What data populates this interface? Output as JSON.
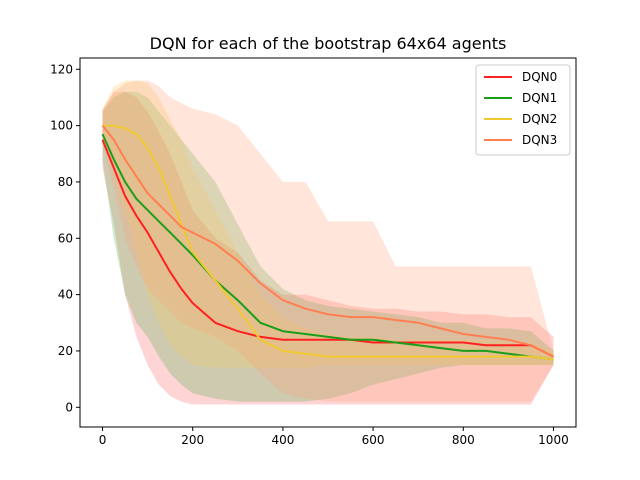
{
  "chart_data": {
    "type": "line",
    "title": "DQN for each of the bootstrap 64x64 agents",
    "xlabel": "",
    "ylabel": "",
    "xlim": [
      -50,
      1050
    ],
    "ylim": [
      -7,
      124
    ],
    "xticks": [
      0,
      200,
      400,
      600,
      800,
      1000
    ],
    "yticks": [
      0,
      20,
      40,
      60,
      80,
      100,
      120
    ],
    "grid": false,
    "legend_position": "top-right",
    "series": [
      {
        "name": "DQN0",
        "color": "#ff2020",
        "band_color": "#ff6666",
        "x": [
          0,
          25,
          50,
          75,
          100,
          125,
          150,
          175,
          200,
          250,
          300,
          350,
          400,
          450,
          500,
          550,
          600,
          650,
          700,
          750,
          800,
          850,
          900,
          950,
          1000
        ],
        "y": [
          95,
          85,
          75,
          68,
          62,
          55,
          48,
          42,
          37,
          30,
          27,
          25,
          24,
          24,
          24,
          24,
          23,
          23,
          23,
          23,
          23,
          22,
          22,
          22,
          18
        ],
        "band_upper": [
          105,
          112,
          112,
          110,
          105,
          98,
          90,
          80,
          70,
          60,
          55,
          45,
          40,
          40,
          38,
          36,
          35,
          35,
          34,
          34,
          33,
          33,
          32,
          32,
          25
        ],
        "band_lower": [
          85,
          65,
          40,
          25,
          15,
          8,
          4,
          2,
          1,
          1,
          1,
          1,
          1,
          1,
          1,
          1,
          1,
          1,
          1,
          1,
          1,
          1,
          1,
          1,
          15
        ]
      },
      {
        "name": "DQN1",
        "color": "#1a9e1a",
        "band_color": "#4caf50",
        "x": [
          0,
          25,
          50,
          75,
          100,
          125,
          150,
          175,
          200,
          250,
          300,
          350,
          400,
          450,
          500,
          550,
          600,
          650,
          700,
          750,
          800,
          850,
          900,
          950,
          1000
        ],
        "y": [
          97,
          88,
          80,
          74,
          70,
          66,
          62,
          58,
          54,
          45,
          38,
          30,
          27,
          26,
          25,
          24,
          24,
          23,
          22,
          21,
          20,
          20,
          19,
          18,
          17
        ],
        "band_upper": [
          105,
          110,
          112,
          112,
          110,
          105,
          100,
          95,
          90,
          80,
          65,
          50,
          42,
          38,
          36,
          35,
          34,
          33,
          32,
          30,
          30,
          28,
          28,
          27,
          20
        ],
        "band_lower": [
          88,
          60,
          40,
          30,
          25,
          18,
          12,
          8,
          5,
          3,
          2,
          2,
          2,
          2,
          3,
          5,
          8,
          10,
          12,
          14,
          15,
          15,
          15,
          15,
          15
        ]
      },
      {
        "name": "DQN2",
        "color": "#f0c830",
        "band_color": "#f5d060",
        "x": [
          0,
          25,
          50,
          75,
          100,
          125,
          150,
          175,
          200,
          250,
          300,
          350,
          400,
          450,
          500,
          550,
          600,
          650,
          700,
          750,
          800,
          850,
          900,
          950,
          1000
        ],
        "y": [
          100,
          100,
          99,
          97,
          92,
          85,
          75,
          65,
          55,
          45,
          35,
          24,
          20,
          19,
          18,
          18,
          18,
          18,
          18,
          18,
          18,
          18,
          18,
          18,
          17
        ],
        "band_upper": [
          106,
          114,
          116,
          116,
          115,
          110,
          102,
          95,
          85,
          70,
          55,
          40,
          32,
          28,
          26,
          25,
          25,
          24,
          24,
          24,
          24,
          24,
          23,
          23,
          20
        ],
        "band_lower": [
          94,
          85,
          70,
          55,
          40,
          30,
          22,
          18,
          15,
          14,
          14,
          14,
          14,
          14,
          15,
          15,
          15,
          15,
          15,
          15,
          15,
          15,
          15,
          15,
          15
        ]
      },
      {
        "name": "DQN3",
        "color": "#ff7f50",
        "band_color": "#ffa07a",
        "x": [
          0,
          25,
          50,
          75,
          100,
          125,
          150,
          175,
          200,
          250,
          300,
          350,
          400,
          450,
          500,
          550,
          600,
          650,
          700,
          750,
          800,
          850,
          900,
          950,
          1000
        ],
        "y": [
          100,
          95,
          88,
          82,
          76,
          72,
          68,
          64,
          62,
          58,
          52,
          44,
          38,
          35,
          33,
          32,
          32,
          31,
          30,
          28,
          26,
          25,
          24,
          22,
          18
        ],
        "band_upper": [
          106,
          112,
          115,
          116,
          116,
          114,
          110,
          108,
          106,
          104,
          100,
          90,
          80,
          80,
          66,
          66,
          66,
          50,
          50,
          50,
          50,
          50,
          50,
          50,
          20
        ],
        "band_lower": [
          94,
          78,
          60,
          50,
          42,
          38,
          34,
          30,
          28,
          25,
          20,
          12,
          5,
          3,
          2,
          2,
          2,
          2,
          2,
          2,
          2,
          2,
          2,
          2,
          15
        ]
      }
    ]
  }
}
